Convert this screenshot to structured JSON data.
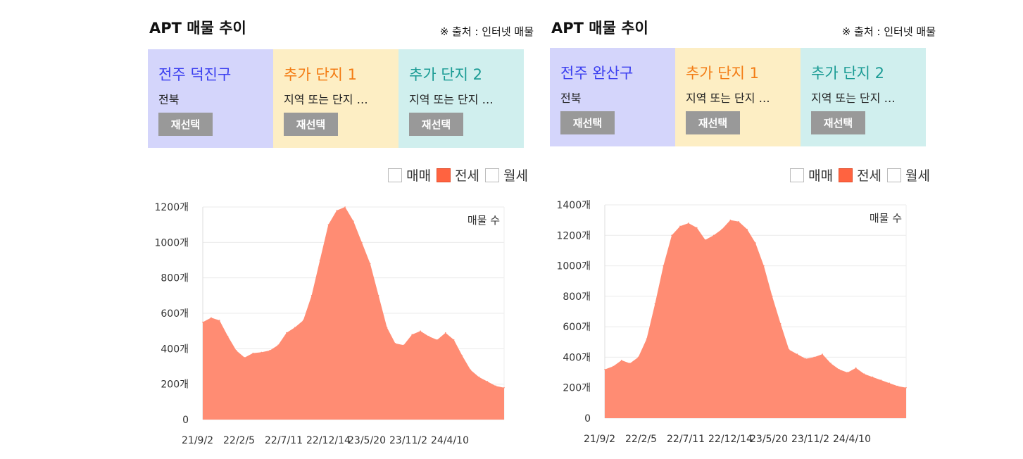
{
  "panels": [
    {
      "title": "APT 매물 추이",
      "source": "※ 출처 : 인터넷 매물",
      "boxes": [
        {
          "name": "전주 덕진구",
          "sub": "전북",
          "button": "재선택",
          "bg": "#d4d5fb",
          "color": "#3b3ff0"
        },
        {
          "name": "추가 단지 1",
          "sub": "지역 또는 단지 …",
          "button": "재선택",
          "bg": "#fdeec4",
          "color": "#f37b12"
        },
        {
          "name": "추가 단지 2",
          "sub": "지역 또는 단지 …",
          "button": "재선택",
          "bg": "#d0efee",
          "color": "#1a9b94"
        }
      ],
      "legend": [
        {
          "label": "매매",
          "checked": false
        },
        {
          "label": "전세",
          "checked": true
        },
        {
          "label": "월세",
          "checked": false
        }
      ],
      "chart_data": {
        "type": "area",
        "title": "",
        "annotation": "매물 수",
        "color": "#ff8c73",
        "ylim": [
          0,
          1200
        ],
        "yticks": [
          0,
          200,
          400,
          600,
          800,
          1000,
          1200
        ],
        "ytick_labels": [
          "0",
          "200개",
          "400개",
          "600개",
          "800개",
          "1000개",
          "1200개"
        ],
        "xtick_labels": [
          "21/9/2",
          "22/2/5",
          "22/7/11",
          "22/12/14",
          "23/5/20",
          "23/11/2",
          "24/4/10"
        ],
        "x": [
          "21/9/2",
          "21/10/2",
          "21/11/2",
          "21/12/2",
          "22/1/2",
          "22/2/5",
          "22/3/5",
          "22/4/5",
          "22/5/5",
          "22/6/5",
          "22/7/11",
          "22/8/11",
          "22/9/11",
          "22/10/11",
          "22/11/11",
          "22/12/14",
          "23/1/14",
          "23/2/14",
          "23/3/14",
          "23/4/14",
          "23/5/20",
          "23/6/20",
          "23/7/20",
          "23/8/20",
          "23/9/20",
          "23/10/20",
          "23/11/2",
          "23/12/2",
          "24/1/2",
          "24/2/2",
          "24/3/2",
          "24/4/10",
          "24/5/10",
          "24/6/10",
          "24/7/10",
          "24/8/10",
          "24/9/10"
        ],
        "values": [
          550,
          575,
          560,
          470,
          390,
          350,
          375,
          380,
          390,
          420,
          490,
          520,
          560,
          700,
          900,
          1100,
          1180,
          1200,
          1120,
          1000,
          880,
          700,
          520,
          430,
          420,
          480,
          500,
          470,
          450,
          490,
          450,
          360,
          280,
          240,
          215,
          190,
          180
        ]
      }
    },
    {
      "title": "APT 매물 추이",
      "source": "※ 출처 : 인터넷 매물",
      "boxes": [
        {
          "name": "전주 완산구",
          "sub": "전북",
          "button": "재선택",
          "bg": "#d4d5fb",
          "color": "#3b3ff0"
        },
        {
          "name": "추가 단지 1",
          "sub": "지역 또는 단지 …",
          "button": "재선택",
          "bg": "#fdeec4",
          "color": "#f37b12"
        },
        {
          "name": "추가 단지 2",
          "sub": "지역 또는 단지 …",
          "button": "재선택",
          "bg": "#d0efee",
          "color": "#1a9b94"
        }
      ],
      "legend": [
        {
          "label": "매매",
          "checked": false
        },
        {
          "label": "전세",
          "checked": true
        },
        {
          "label": "월세",
          "checked": false
        }
      ],
      "chart_data": {
        "type": "area",
        "title": "",
        "annotation": "매물 수",
        "color": "#ff8c73",
        "ylim": [
          0,
          1400
        ],
        "yticks": [
          0,
          200,
          400,
          600,
          800,
          1000,
          1200,
          1400
        ],
        "ytick_labels": [
          "0",
          "200개",
          "400개",
          "600개",
          "800개",
          "1000개",
          "1200개",
          "1400개"
        ],
        "xtick_labels": [
          "21/9/2",
          "22/2/5",
          "22/7/11",
          "22/12/14",
          "23/5/20",
          "23/11/2",
          "24/4/10"
        ],
        "x": [
          "21/9/2",
          "21/10/2",
          "21/11/2",
          "21/12/2",
          "22/1/2",
          "22/2/5",
          "22/3/5",
          "22/4/5",
          "22/5/5",
          "22/6/5",
          "22/7/11",
          "22/8/11",
          "22/9/11",
          "22/10/11",
          "22/11/11",
          "22/12/14",
          "23/1/14",
          "23/2/14",
          "23/3/14",
          "23/4/14",
          "23/5/20",
          "23/6/20",
          "23/7/20",
          "23/8/20",
          "23/9/20",
          "23/10/20",
          "23/11/2",
          "23/12/2",
          "24/1/2",
          "24/2/2",
          "24/3/2",
          "24/4/10",
          "24/5/10",
          "24/6/10",
          "24/7/10",
          "24/8/10",
          "24/9/10"
        ],
        "values": [
          320,
          340,
          380,
          360,
          400,
          520,
          750,
          1000,
          1200,
          1260,
          1280,
          1250,
          1170,
          1200,
          1240,
          1300,
          1290,
          1240,
          1150,
          1000,
          800,
          620,
          450,
          420,
          390,
          400,
          420,
          360,
          320,
          300,
          330,
          290,
          270,
          250,
          230,
          210,
          200
        ]
      }
    }
  ]
}
